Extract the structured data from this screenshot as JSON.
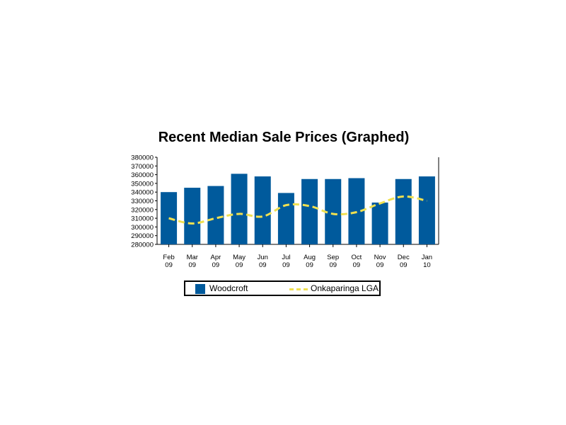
{
  "chart_data": {
    "type": "bar",
    "title": "Recent Median Sale Prices (Graphed)",
    "categories": [
      [
        "Feb",
        "09"
      ],
      [
        "Mar",
        "09"
      ],
      [
        "Apr",
        "09"
      ],
      [
        "May",
        "09"
      ],
      [
        "Jun",
        "09"
      ],
      [
        "Jul",
        "09"
      ],
      [
        "Aug",
        "09"
      ],
      [
        "Sep",
        "09"
      ],
      [
        "Oct",
        "09"
      ],
      [
        "Nov",
        "09"
      ],
      [
        "Dec",
        "09"
      ],
      [
        "Jan",
        "10"
      ]
    ],
    "ylim": [
      280000,
      380000
    ],
    "yticks": [
      "280000",
      "290000",
      "300000",
      "310000",
      "320000",
      "330000",
      "340000",
      "350000",
      "360000",
      "370000",
      "380000"
    ],
    "grid": false,
    "legend_position": "bottom",
    "series": [
      {
        "name": "Woodcroft",
        "type": "bar",
        "color": "#005a9c",
        "values": [
          340000,
          345000,
          347000,
          361000,
          358000,
          339000,
          355000,
          355000,
          356000,
          328000,
          355000,
          358000
        ]
      },
      {
        "name": "Onkaparinga LGA",
        "type": "line",
        "style": "dashed",
        "color": "#f0e050",
        "values": [
          310000,
          304000,
          310000,
          315000,
          312000,
          325000,
          324000,
          315000,
          317000,
          327000,
          335000,
          330000
        ]
      }
    ]
  }
}
